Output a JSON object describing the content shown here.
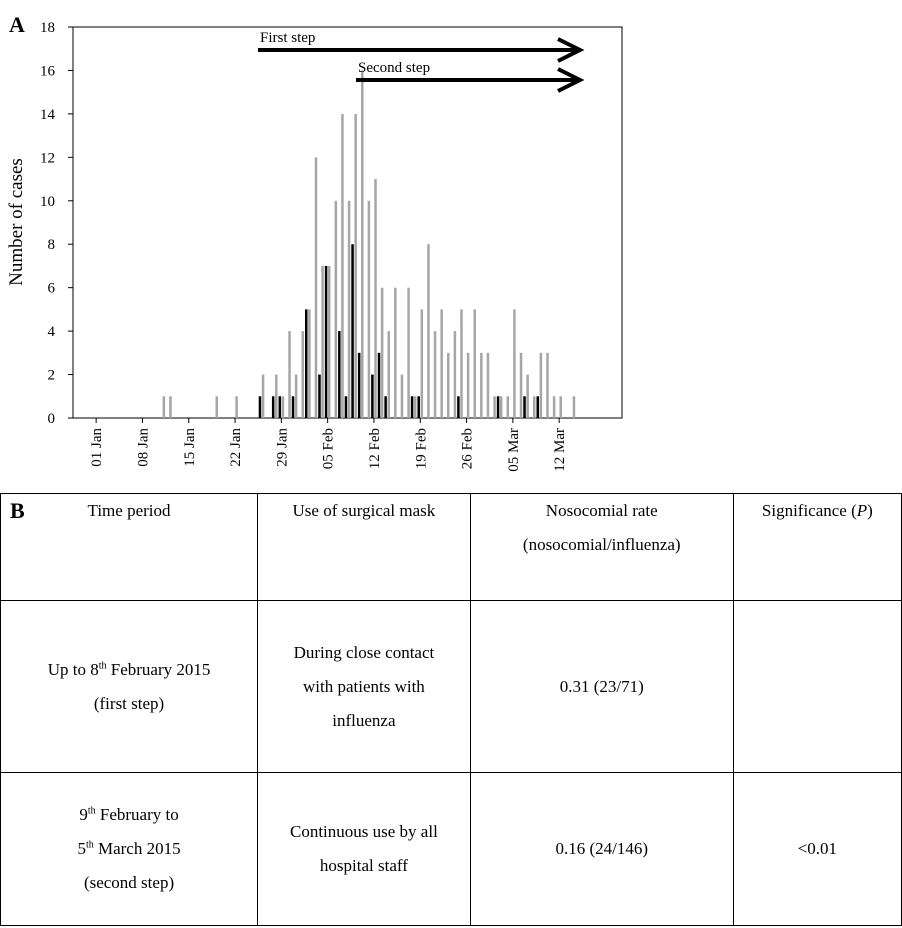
{
  "panel_a": "A",
  "panel_b": "B",
  "chart_data": {
    "type": "bar",
    "ylabel": "Number of cases",
    "categories": [
      null,
      null,
      null,
      "01 Jan",
      null,
      null,
      null,
      null,
      null,
      null,
      "08 Jan",
      null,
      null,
      null,
      null,
      null,
      null,
      "15 Jan",
      null,
      null,
      null,
      null,
      null,
      null,
      "22 Jan",
      null,
      null,
      null,
      null,
      null,
      null,
      "29 Jan",
      null,
      null,
      null,
      null,
      null,
      null,
      "05 Feb",
      null,
      null,
      null,
      null,
      null,
      null,
      "12 Feb",
      null,
      null,
      null,
      null,
      null,
      null,
      "19 Feb",
      null,
      null,
      null,
      null,
      null,
      null,
      "26 Feb",
      null,
      null,
      null,
      null,
      null,
      null,
      "05 Mar",
      null,
      null,
      null,
      null,
      null,
      null,
      "12 Mar",
      null,
      null,
      null,
      null,
      null,
      null,
      null,
      null,
      null
    ],
    "series": [
      {
        "color": "#000000",
        "values": [
          0,
          0,
          0,
          0,
          0,
          0,
          0,
          0,
          0,
          0,
          0,
          0,
          0,
          0,
          0,
          0,
          0,
          0,
          0,
          0,
          0,
          0,
          0,
          0,
          0,
          0,
          0,
          0,
          1,
          0,
          1,
          1,
          0,
          1,
          0,
          5,
          0,
          2,
          7,
          0,
          4,
          1,
          8,
          3,
          0,
          2,
          3,
          1,
          0,
          0,
          0,
          1,
          1,
          0,
          0,
          0,
          0,
          0,
          1,
          0,
          0,
          0,
          0,
          0,
          1,
          0,
          0,
          0,
          1,
          0,
          1,
          0,
          0,
          0,
          0,
          0,
          0,
          0,
          0,
          0,
          0,
          0,
          0
        ]
      },
      {
        "color": "#a6a6a6",
        "values": [
          0,
          0,
          0,
          0,
          0,
          0,
          0,
          0,
          0,
          0,
          0,
          0,
          0,
          1,
          1,
          0,
          0,
          0,
          0,
          0,
          0,
          1,
          0,
          0,
          1,
          0,
          0,
          0,
          2,
          0,
          2,
          1,
          4,
          2,
          4,
          5,
          12,
          7,
          7,
          10,
          14,
          10,
          14,
          16,
          10,
          11,
          6,
          4,
          6,
          2,
          6,
          1,
          5,
          8,
          4,
          5,
          3,
          4,
          5,
          3,
          5,
          3,
          3,
          1,
          1,
          1,
          5,
          3,
          2,
          1,
          3,
          3,
          1,
          1,
          0,
          1,
          0,
          0,
          0,
          0,
          0,
          0,
          0
        ]
      }
    ],
    "ylim": [
      0,
      18
    ],
    "yticks": [
      0,
      2,
      4,
      6,
      8,
      10,
      12,
      14,
      16,
      18
    ],
    "annotations": [
      "First step",
      "Second step"
    ]
  },
  "table": {
    "header": [
      [
        [
          "Time period"
        ]
      ],
      [
        [
          "Use of surgical mask"
        ]
      ],
      [
        [
          "Nosocomial rate"
        ],
        [
          "(nosocomial/influenza)"
        ]
      ],
      [
        [
          "Significance (",
          "P",
          ")"
        ]
      ]
    ],
    "rows": [
      [
        [
          [
            "Up to 8",
            "th",
            " February 2015"
          ],
          [
            "(first step)"
          ]
        ],
        [
          [
            "During close contact"
          ],
          [
            "with patients with"
          ],
          [
            "influenza"
          ]
        ],
        [
          [
            "0.31 (23/71)"
          ]
        ],
        []
      ],
      [
        [
          [
            "9",
            "th",
            " February to"
          ],
          [
            "5",
            "th",
            " March 2015"
          ],
          [
            "(second step)"
          ]
        ],
        [
          [
            "Continuous use by all"
          ],
          [
            "hospital staff"
          ]
        ],
        [
          [
            "0.16 (24/146)"
          ]
        ],
        [
          [
            "<0.01"
          ]
        ]
      ]
    ]
  }
}
